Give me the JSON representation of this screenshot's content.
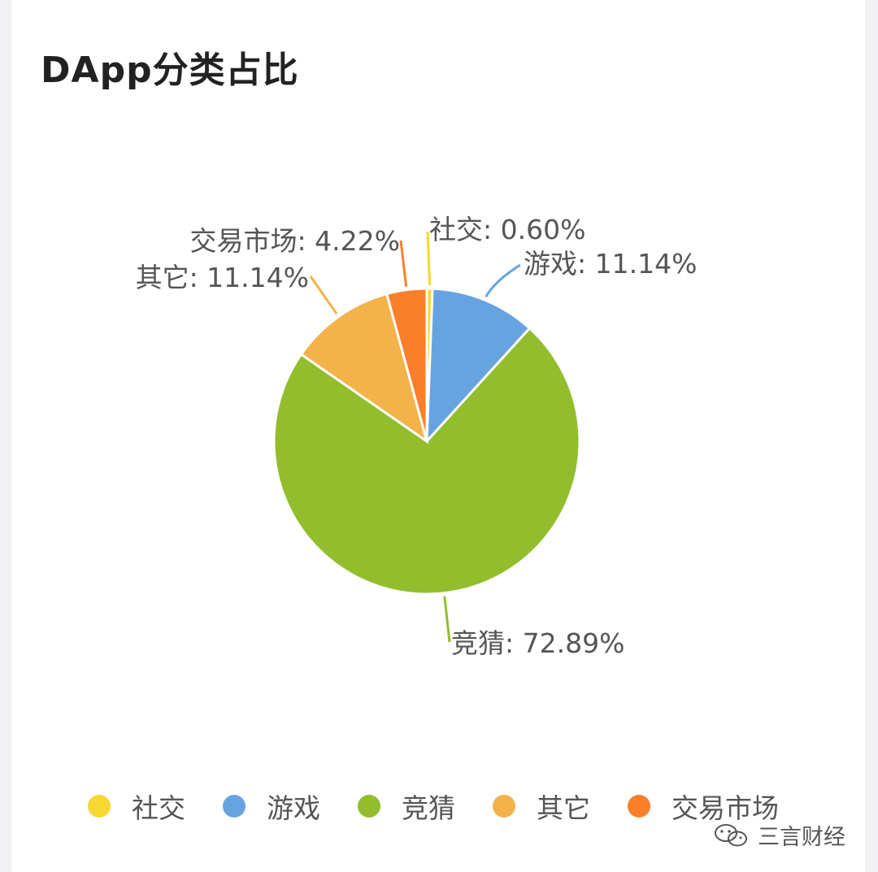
{
  "chart_data": {
    "type": "pie",
    "title": "DApp分类占比",
    "slices": [
      {
        "name": "社交",
        "value": 0.6,
        "label": "社交: 0.60%",
        "color": "#f7d730"
      },
      {
        "name": "游戏",
        "value": 11.14,
        "label": "游戏: 11.14%",
        "color": "#67a3e1"
      },
      {
        "name": "竞猜",
        "value": 72.89,
        "label": "竞猜: 72.89%",
        "color": "#92bd2d"
      },
      {
        "name": "其它",
        "value": 11.14,
        "label": "其它: 11.14%",
        "color": "#f4b24a"
      },
      {
        "name": "交易市场",
        "value": 4.22,
        "label": "交易市场: 4.22%",
        "color": "#fa7f2a"
      }
    ],
    "legend_position": "bottom"
  },
  "watermark": {
    "text": "三言财经",
    "icon": "wechat-icon"
  }
}
